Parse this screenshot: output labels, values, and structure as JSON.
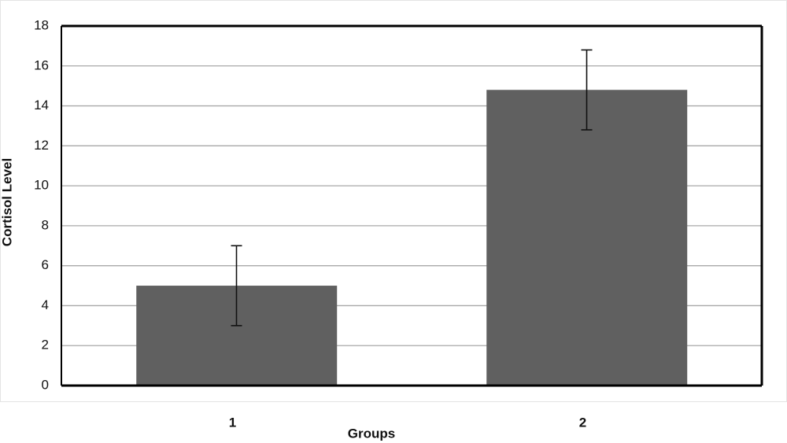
{
  "chart_data": {
    "type": "bar",
    "categories": [
      "1",
      "2"
    ],
    "values": [
      5,
      14.8
    ],
    "errors": [
      2,
      2
    ],
    "color": "#606060",
    "x_label": "Groups",
    "y_label": "Cortisol Level",
    "ylim": [
      0,
      18
    ],
    "yticks": [
      0,
      2,
      4,
      6,
      8,
      10,
      12,
      14,
      16,
      18
    ],
    "grid": true
  }
}
